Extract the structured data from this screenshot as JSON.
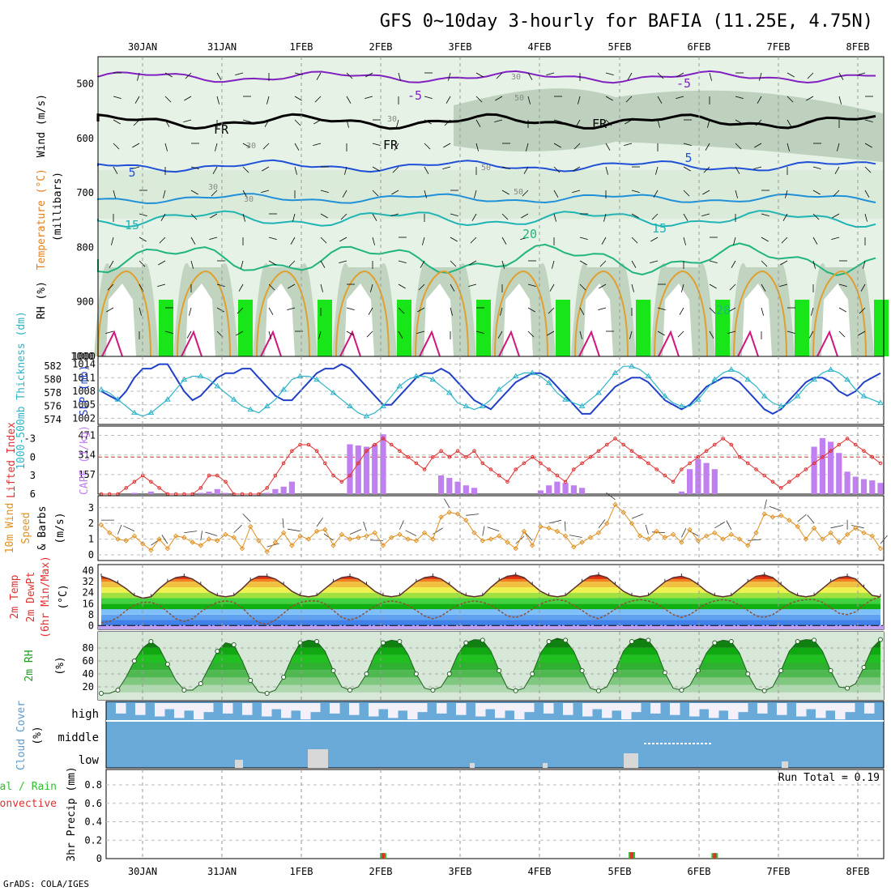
{
  "title": "GFS 0~10day 3-hourly for BAFIA (11.25E, 4.75N)",
  "credit": "GrADS: COLA/IGES",
  "date_labels": [
    "30JAN",
    "31JAN",
    "1FEB",
    "2FEB",
    "3FEB",
    "4FEB",
    "5FEB",
    "6FEB",
    "7FEB",
    "8FEB"
  ],
  "colors": {
    "rh_green": "#19c819",
    "rh_dark": "#b4c8b4",
    "thickness": "#2db4c8",
    "slp": "#2040c8",
    "lifted": "#e03030",
    "cape": "#c080f0",
    "wind": "#e09020",
    "cloud": "#6aaad8",
    "precip_total": "#30c030",
    "precip_conv": "#e03030"
  },
  "panels": {
    "upper_air": {
      "labels": {
        "wind": "Wind (m/s)",
        "temp": "Temperature (°C)",
        "rh": "RH (%)",
        "units": "(millibars)"
      },
      "yticks": [
        "500",
        "600",
        "700",
        "800",
        "900",
        "1000"
      ],
      "contour_labels": [
        "-5",
        "-5",
        "FR",
        "FR",
        "FR",
        "5",
        "5",
        "15",
        "20",
        "15",
        "30",
        "30",
        "30",
        "30",
        "30",
        "50",
        "50",
        "50",
        "20"
      ]
    },
    "thickness_slp": {
      "labels": {
        "thickness": "1000-500mb Thickness (dm)",
        "slp": "SLP (mb)"
      },
      "left_ticks": [
        "582",
        "580",
        "578",
        "576",
        "574"
      ],
      "right_ticks": [
        "1014",
        "1011",
        "1008",
        "1005",
        "1002"
      ]
    },
    "li_cape": {
      "labels": {
        "li": "Lifted Index",
        "cape": "CAPE (J/kg)"
      },
      "left_ticks": [
        "-3",
        "0",
        "3",
        "6"
      ],
      "right_ticks": [
        "471",
        "314",
        "157"
      ]
    },
    "wind10m": {
      "labels": {
        "l1": "10m Wind",
        "l2": "Speed",
        "l3": "& Barbs",
        "units": "(m/s)"
      },
      "yticks": [
        "3",
        "2",
        "1",
        "0"
      ]
    },
    "temp2m": {
      "labels": {
        "l1": "2m Temp",
        "l2": "2m DewPt",
        "l3": "(6hr Min/Max)",
        "units": "(°C)"
      },
      "yticks": [
        "40",
        "32",
        "24",
        "16",
        "8",
        "0"
      ]
    },
    "rh2m": {
      "labels": {
        "l1": "2m RH",
        "units": "(%)"
      },
      "yticks": [
        "80",
        "60",
        "40",
        "20"
      ]
    },
    "cloud": {
      "labels": {
        "l1": "Cloud Cover",
        "units": "(%)",
        "high": "high",
        "middle": "middle",
        "low": "low"
      }
    },
    "precip": {
      "labels": {
        "l1": "Total / Rain",
        "l2": "Convective",
        "l3": "3hr Precip (mm)",
        "run_total": "Run Total = 0.19"
      },
      "yticks": [
        "0.8",
        "0.6",
        "0.4",
        "0.2",
        "0"
      ]
    }
  },
  "chart_data": {
    "type": "line",
    "x": [
      "2.6",
      "2.9",
      "3.2",
      "3.5",
      "3.8",
      "4.1",
      "4.4",
      "4.7",
      "5.0",
      "5.3",
      "5.6",
      "5.9",
      "6.2",
      "6.5",
      "6.8",
      "7.1",
      "7.4",
      "7.7",
      "8.0",
      "8.3",
      "8.6",
      "8.9",
      "9.2",
      "9.5",
      "9.8",
      "10.1",
      "10.4",
      "10.7",
      "11.0",
      "11.3",
      "11.6",
      "11.9",
      "12.2",
      "12.5",
      "12.8",
      "13.1",
      "13.4",
      "13.7",
      "14.0",
      "14.3",
      "14.6",
      "14.9",
      "15.2",
      "15.5",
      "15.8",
      "16.1",
      "16.4",
      "16.7",
      "17.0",
      "17.3",
      "17.6",
      "17.9",
      "18.2",
      "18.5",
      "18.8",
      "19.1",
      "19.4",
      "19.7",
      "20.0",
      "20.3",
      "20.6",
      "20.9",
      "21.2",
      "21.5",
      "21.8",
      "22.1",
      "22.4",
      "22.7",
      "23.0",
      "23.3",
      "23.6",
      "23.9",
      "24.2",
      "24.5",
      "24.8",
      "25.1",
      "25.4",
      "25.7",
      "26.0",
      "26.3",
      "26.6",
      "26.9",
      "27.2",
      "27.5",
      "27.8",
      "28.1",
      "28.4",
      "28.7",
      "29.0",
      "29.3",
      "29.6",
      "29.9",
      "30.2",
      "30.5",
      "30.8"
    ],
    "x_note_units": "forecast step index",
    "series": [
      {
        "name": "SLP (mb)",
        "values": [
          1008,
          1007,
          1006,
          1008,
          1011,
          1013,
          1013,
          1014,
          1014,
          1011,
          1008,
          1006,
          1007,
          1009,
          1011,
          1012,
          1012,
          1013,
          1013,
          1011,
          1009,
          1007,
          1006,
          1006,
          1008,
          1010,
          1012,
          1013,
          1013,
          1014,
          1013,
          1011,
          1009,
          1007,
          1005,
          1005,
          1007,
          1009,
          1011,
          1012,
          1012,
          1013,
          1012,
          1010,
          1008,
          1006,
          1005,
          1004,
          1006,
          1008,
          1010,
          1011,
          1012,
          1012,
          1011,
          1009,
          1007,
          1005,
          1003,
          1003,
          1005,
          1007,
          1009,
          1010,
          1011,
          1011,
          1010,
          1008,
          1006,
          1005,
          1004,
          1005,
          1007,
          1009,
          1010,
          1011,
          1011,
          1010,
          1008,
          1006,
          1004,
          1003,
          1004,
          1006,
          1008,
          1010,
          1011,
          1011,
          1010,
          1008,
          1007,
          1008,
          1010,
          1011,
          1012
        ]
      },
      {
        "name": "Thickness (dm)",
        "values": [
          578.5,
          578,
          577,
          576,
          575,
          574.5,
          575,
          576,
          577,
          578.5,
          580,
          580.5,
          580.5,
          580,
          579,
          578,
          577,
          576,
          575.5,
          575,
          576,
          577,
          578.5,
          580,
          580.5,
          580.5,
          580,
          579,
          578,
          577,
          576,
          575,
          574.5,
          575,
          576,
          577.5,
          579,
          580,
          580.5,
          580.5,
          580,
          579,
          578,
          576.5,
          576,
          575.5,
          576,
          577,
          578.5,
          579.5,
          580.5,
          581,
          581,
          580.5,
          579.5,
          578,
          577,
          576.5,
          576,
          577,
          578,
          579.5,
          581,
          582,
          582,
          581.5,
          580.5,
          579,
          577.5,
          576.5,
          576,
          576,
          577,
          578.5,
          580,
          581,
          581.5,
          581,
          580,
          579,
          577.5,
          576.5,
          576,
          576.5,
          577.5,
          579,
          580,
          581,
          581.5,
          581,
          580,
          578.5,
          577.5,
          577,
          576.5
        ]
      },
      {
        "name": "Lifted Index",
        "values": [
          6,
          6,
          6,
          5,
          4,
          3,
          4,
          5,
          6,
          6,
          6,
          6,
          5,
          3,
          3,
          4,
          6,
          6,
          6,
          6,
          5,
          3,
          1,
          -1,
          -2,
          -2,
          -1,
          1,
          3,
          4,
          3,
          1,
          -1,
          -2,
          -3,
          -2,
          -1,
          0,
          1,
          2,
          0,
          -1,
          0,
          -1,
          0,
          -1,
          1,
          2,
          3,
          4,
          2,
          1,
          0,
          1,
          2,
          3,
          4,
          2,
          1,
          0,
          -1,
          -2,
          -3,
          -2,
          -1,
          0,
          1,
          2,
          3,
          4,
          2,
          1,
          0,
          -1,
          -2,
          -3,
          -2,
          0,
          1,
          2,
          3,
          4,
          5,
          4,
          3,
          2,
          1,
          0,
          -1,
          -2,
          -3,
          -2,
          -1,
          0,
          1
        ]
      },
      {
        "name": "CAPE (J/kg)",
        "values": [
          0,
          0,
          0,
          0,
          10,
          0,
          20,
          0,
          0,
          0,
          0,
          0,
          10,
          20,
          40,
          10,
          0,
          0,
          0,
          0,
          10,
          40,
          60,
          100,
          0,
          0,
          0,
          0,
          0,
          0,
          400,
          390,
          380,
          400,
          480,
          0,
          0,
          0,
          0,
          0,
          0,
          150,
          130,
          100,
          70,
          50,
          0,
          0,
          0,
          0,
          0,
          0,
          0,
          30,
          70,
          100,
          90,
          70,
          50,
          0,
          0,
          0,
          0,
          0,
          0,
          0,
          0,
          0,
          0,
          0,
          20,
          200,
          280,
          250,
          200,
          0,
          0,
          0,
          0,
          0,
          0,
          0,
          0,
          0,
          0,
          0,
          380,
          450,
          420,
          330,
          180,
          140,
          120,
          110,
          90
        ]
      },
      {
        "name": "10m Wind Speed (m/s)",
        "values": [
          1.9,
          1.4,
          1.0,
          0.9,
          1.2,
          0.7,
          0.3,
          1.0,
          0.4,
          1.2,
          1.1,
          0.8,
          0.6,
          1.0,
          0.9,
          1.3,
          1.1,
          0.4,
          1.8,
          0.9,
          0.2,
          0.8,
          1.4,
          0.6,
          1.2,
          1.0,
          1.5,
          1.6,
          0.6,
          1.3,
          1.0,
          1.1,
          1.2,
          1.4,
          0.6,
          1.1,
          1.3,
          1.0,
          0.9,
          1.4,
          1.0,
          2.4,
          2.7,
          2.6,
          2.2,
          1.4,
          0.9,
          1.0,
          1.2,
          0.8,
          0.4,
          1.5,
          0.6,
          1.8,
          1.7,
          1.5,
          1.2,
          0.5,
          0.8,
          1.1,
          1.4,
          2.0,
          3.2,
          2.7,
          2.0,
          1.2,
          1.0,
          1.5,
          1.1,
          1.3,
          0.8,
          1.6,
          0.9,
          1.2,
          1.4,
          1.0,
          1.3,
          1.0,
          0.6,
          1.4,
          2.6,
          2.4,
          2.5,
          2.2,
          1.8,
          1.0,
          1.7,
          1.0,
          1.4,
          0.8,
          1.3,
          1.7,
          1.4,
          1.2,
          0.4
        ]
      },
      {
        "name": "2m Temp (°C)",
        "values": [
          36,
          34,
          31,
          27,
          22,
          20,
          21,
          27,
          32,
          35,
          36,
          34,
          30,
          25,
          22,
          21,
          22,
          27,
          33,
          36,
          36,
          34,
          30,
          25,
          22,
          21,
          22,
          27,
          32,
          35,
          36,
          34,
          30,
          25,
          22,
          21,
          22,
          27,
          32,
          35,
          36,
          34,
          30,
          25,
          22,
          21,
          22,
          28,
          33,
          36,
          37,
          35,
          30,
          25,
          22,
          21,
          22,
          27,
          32,
          36,
          37,
          35,
          30,
          25,
          22,
          21,
          22,
          27,
          32,
          35,
          36,
          34,
          30,
          25,
          22,
          21,
          22,
          27,
          32,
          36,
          37,
          35,
          30,
          25,
          22,
          21,
          22,
          27,
          32,
          35,
          36,
          34,
          28,
          22,
          21
        ]
      },
      {
        "name": "2m DewPt (°C)",
        "values": [
          2,
          3,
          6,
          11,
          15,
          17,
          17,
          15,
          10,
          5,
          3,
          5,
          10,
          14,
          17,
          18,
          17,
          13,
          7,
          2,
          1,
          4,
          9,
          14,
          17,
          18,
          18,
          16,
          11,
          6,
          4,
          6,
          10,
          14,
          17,
          18,
          17,
          15,
          11,
          7,
          5,
          7,
          11,
          15,
          17,
          18,
          17,
          15,
          11,
          7,
          6,
          8,
          12,
          16,
          18,
          19,
          18,
          15,
          11,
          7,
          5,
          8,
          12,
          16,
          18,
          19,
          18,
          16,
          12,
          8,
          6,
          8,
          12,
          16,
          18,
          19,
          18,
          15,
          11,
          7,
          6,
          8,
          12,
          16,
          18,
          19,
          19,
          17,
          13,
          9,
          8,
          10,
          15,
          19,
          21
        ]
      },
      {
        "name": "2m RH (%)",
        "values": [
          10,
          10,
          15,
          35,
          60,
          80,
          90,
          80,
          55,
          30,
          15,
          15,
          25,
          50,
          75,
          88,
          85,
          60,
          30,
          12,
          10,
          15,
          35,
          65,
          88,
          92,
          90,
          75,
          45,
          20,
          15,
          20,
          40,
          70,
          88,
          92,
          90,
          70,
          40,
          18,
          15,
          20,
          40,
          70,
          88,
          93,
          92,
          75,
          45,
          18,
          14,
          18,
          40,
          72,
          90,
          95,
          92,
          75,
          45,
          18,
          14,
          20,
          45,
          75,
          90,
          95,
          92,
          75,
          42,
          18,
          15,
          22,
          45,
          72,
          88,
          92,
          90,
          72,
          40,
          17,
          14,
          20,
          45,
          75,
          90,
          93,
          92,
          75,
          45,
          20,
          18,
          25,
          50,
          80,
          93
        ]
      },
      {
        "name": "3hr Precip (mm)",
        "values": [
          0,
          0,
          0,
          0,
          0,
          0,
          0,
          0,
          0,
          0,
          0,
          0,
          0,
          0,
          0,
          0,
          0,
          0,
          0,
          0,
          0,
          0,
          0,
          0,
          0,
          0,
          0,
          0,
          0,
          0,
          0,
          0,
          0,
          0,
          0.06,
          0,
          0,
          0,
          0,
          0,
          0,
          0,
          0,
          0,
          0,
          0,
          0,
          0,
          0,
          0,
          0,
          0,
          0,
          0,
          0,
          0,
          0,
          0,
          0,
          0,
          0,
          0,
          0,
          0,
          0.07,
          0,
          0,
          0,
          0,
          0,
          0,
          0,
          0,
          0,
          0.06,
          0,
          0,
          0,
          0,
          0,
          0,
          0,
          0,
          0,
          0,
          0,
          0,
          0,
          0,
          0,
          0,
          0,
          0,
          0,
          0
        ]
      }
    ]
  }
}
